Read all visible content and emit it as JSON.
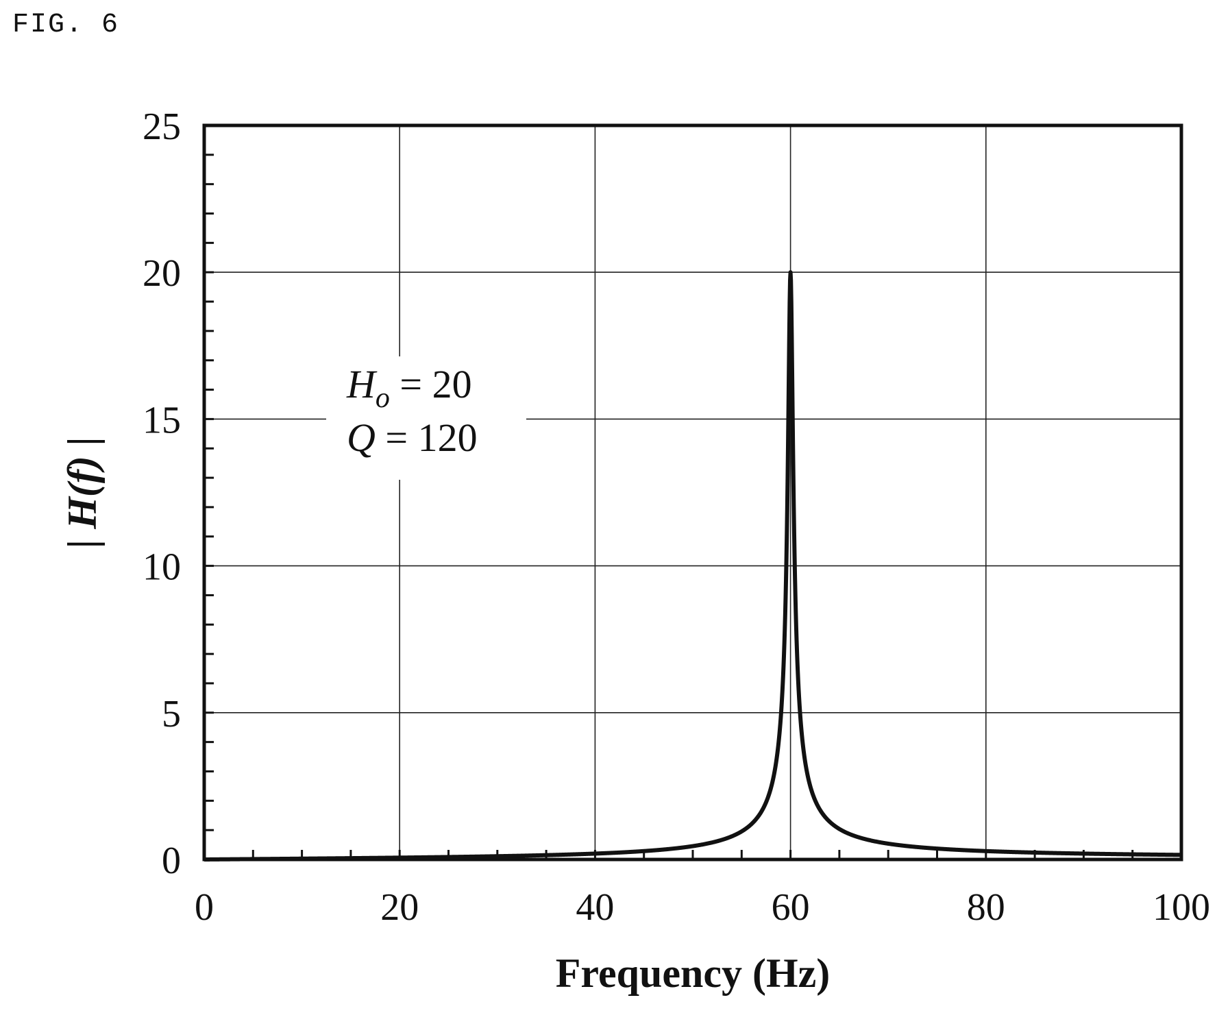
{
  "figure_label": "FIG. 6",
  "chart_data": {
    "type": "line",
    "xlabel": "Frequency (Hz)",
    "ylabel": "| H(f) |",
    "xlim": [
      0,
      100
    ],
    "ylim": [
      0,
      25
    ],
    "x_ticks": [
      0,
      20,
      40,
      60,
      80,
      100
    ],
    "y_ticks": [
      0,
      5,
      10,
      15,
      20,
      25
    ],
    "x_minor_step": 5,
    "y_minor_step": 1,
    "grid": true,
    "annotations": [
      {
        "symbol": "H",
        "subscript": "o",
        "text": " = 20"
      },
      {
        "symbol": "Q",
        "subscript": "",
        "text": " = 120"
      }
    ],
    "series": [
      {
        "model": "resonance",
        "H0": 20,
        "Q": 120,
        "f0": 60,
        "x": [
          0,
          10,
          20,
          30,
          40,
          45,
          50,
          55,
          57,
          58,
          59,
          59.5,
          60,
          60.5,
          61,
          62,
          63,
          65,
          70,
          80,
          90,
          100
        ],
        "y": [
          0,
          0.03,
          0.07,
          0.11,
          0.2,
          0.3,
          0.45,
          0.75,
          1.3,
          2.0,
          4.0,
          7.5,
          20,
          7.5,
          4.0,
          2.0,
          1.3,
          0.85,
          0.5,
          0.27,
          0.18,
          0.15
        ],
        "color": "#111111"
      }
    ]
  }
}
